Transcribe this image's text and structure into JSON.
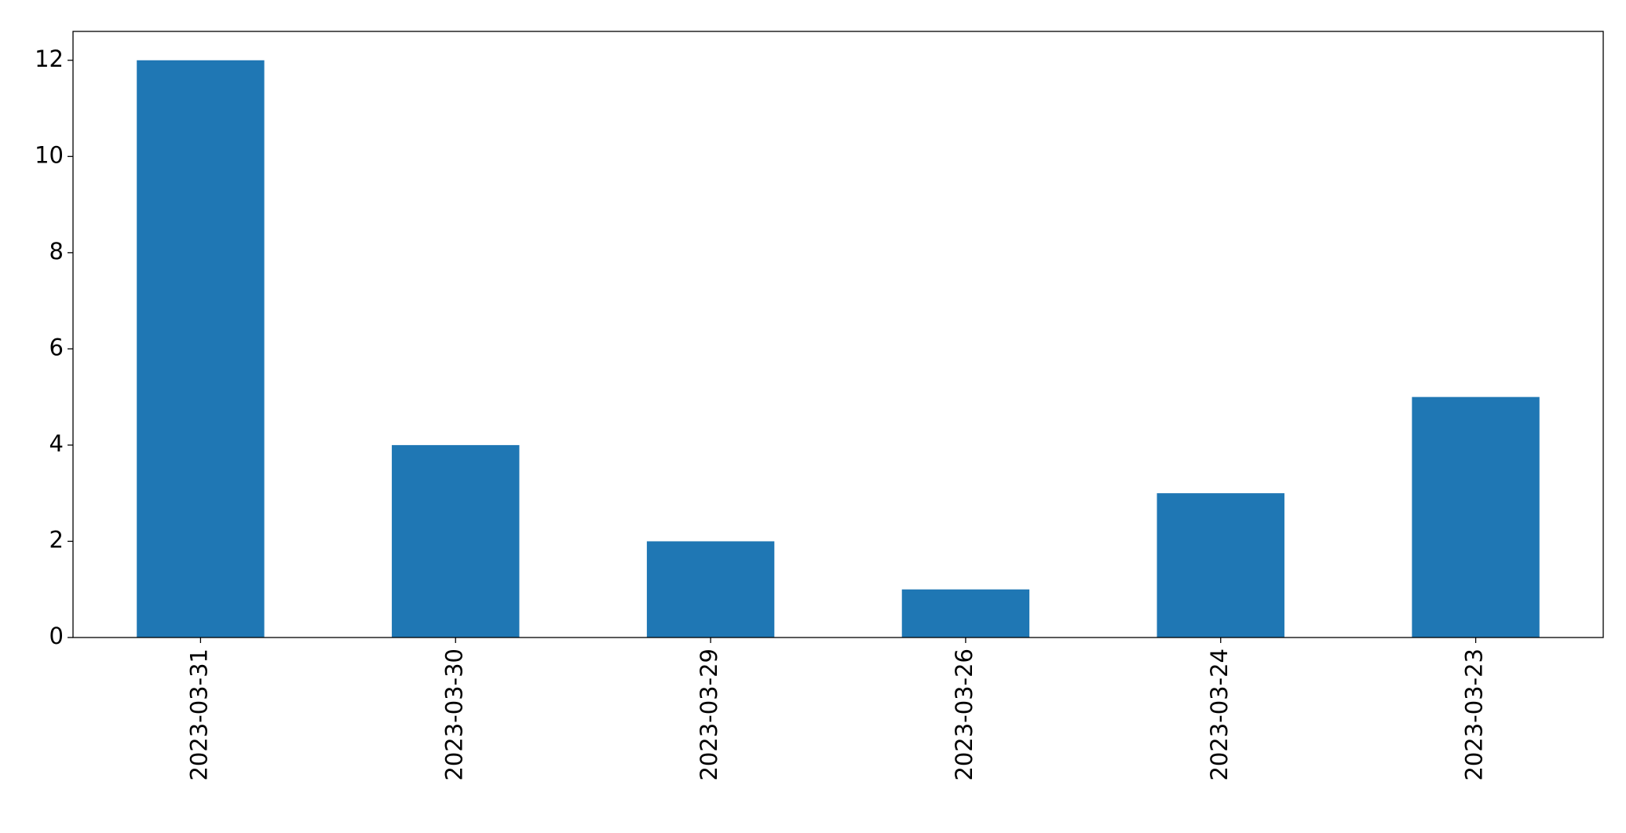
{
  "chart_data": {
    "type": "bar",
    "categories": [
      "2023-03-31",
      "2023-03-30",
      "2023-03-29",
      "2023-03-26",
      "2023-03-24",
      "2023-03-23"
    ],
    "values": [
      12,
      4,
      2,
      1,
      3,
      5
    ],
    "color": "#1f77b4",
    "ylim": [
      0,
      12.6
    ],
    "yticks": [
      0,
      2,
      4,
      6,
      8,
      10,
      12
    ],
    "grid": false
  }
}
